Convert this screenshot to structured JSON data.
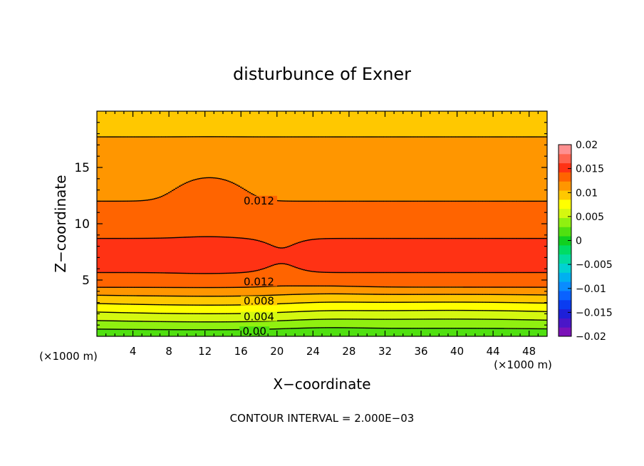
{
  "chart_data": {
    "type": "contour",
    "title": "disturbunce of Exner",
    "xlabel": "X−coordinate",
    "ylabel": "Z−coordinate",
    "x_unit_left": "(×1000 m)",
    "x_unit_right": "(×1000 m)",
    "footer": "CONTOUR INTERVAL = 2.000E−03",
    "xlim": [
      0,
      50
    ],
    "ylim": [
      0,
      20
    ],
    "x_ticks": [
      4,
      8,
      12,
      16,
      20,
      24,
      28,
      32,
      36,
      40,
      44,
      48
    ],
    "x_tick_labels": [
      "4",
      "8",
      "12",
      "16",
      "20",
      "24",
      "28",
      "32",
      "36",
      "40",
      "44",
      "48"
    ],
    "y_ticks": [
      5,
      10,
      15
    ],
    "y_tick_labels": [
      "5",
      "10",
      "15"
    ],
    "contour_interval": 0.002,
    "contour_labels": [
      {
        "text": "0.012",
        "x": 18,
        "z": 12.1
      },
      {
        "text": "0.012",
        "x": 18,
        "z": 4.9
      },
      {
        "text": "0.008",
        "x": 18,
        "z": 3.2
      },
      {
        "text": "0.004",
        "x": 18,
        "z": 1.8
      },
      {
        "text": "0.00",
        "x": 17.5,
        "z": 0.5
      }
    ],
    "colorbar": {
      "levels": [
        -0.02,
        -0.018,
        -0.016,
        -0.014,
        -0.012,
        -0.01,
        -0.008,
        -0.006,
        -0.004,
        -0.002,
        0,
        0.002,
        0.004,
        0.006,
        0.008,
        0.01,
        0.012,
        0.014,
        0.016,
        0.018,
        0.02
      ],
      "colors": [
        "#7b12b8",
        "#4a16c8",
        "#1e20d8",
        "#0a3cf0",
        "#0a62ff",
        "#0a8cff",
        "#00b0f0",
        "#00d2d2",
        "#00dca0",
        "#00dc64",
        "#10d020",
        "#50e010",
        "#90f010",
        "#d4f810",
        "#ffff00",
        "#ffc800",
        "#ff9600",
        "#ff6400",
        "#ff3214",
        "#ff6450",
        "#ff9090"
      ],
      "tick_labels": [
        "0.02",
        "0.015",
        "0.01",
        "0.005",
        "0",
        "−0.005",
        "−0.01",
        "−0.015",
        "−0.02"
      ],
      "tick_values": [
        0.02,
        0.015,
        0.01,
        0.005,
        0,
        -0.005,
        -0.01,
        -0.015,
        -0.02
      ]
    }
  }
}
